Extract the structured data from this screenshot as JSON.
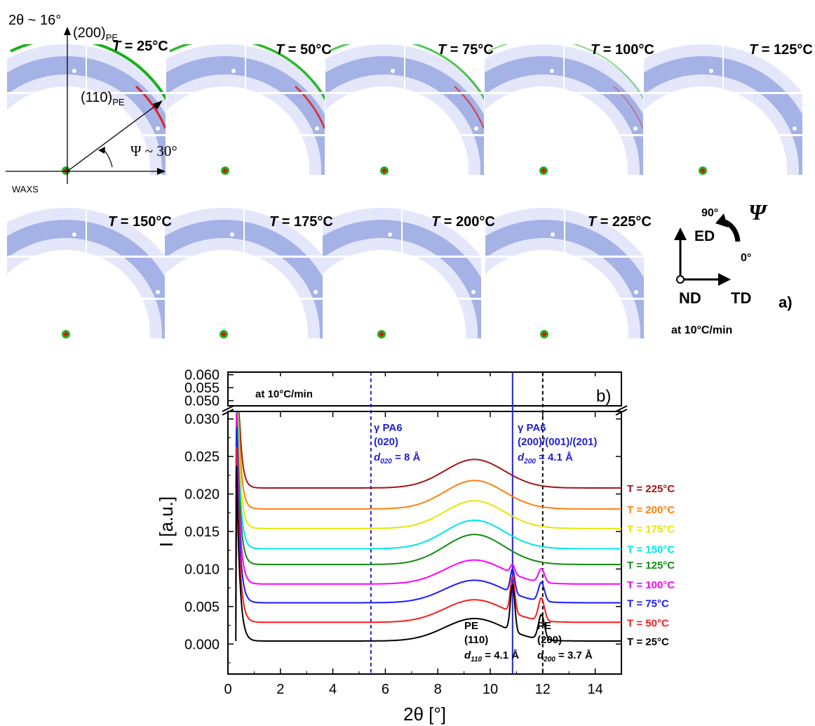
{
  "panel_a": {
    "top_left_text": "2θ ~ 16°",
    "label_200": "(200)",
    "label_110": "(110)",
    "sub_pe": "PE",
    "psi_angle": "Ψ ~ 30°",
    "waxs": "WAXS",
    "temps": [
      {
        "var": "T",
        "value": " = 25°C",
        "arc": 1.0
      },
      {
        "var": "T",
        "value": " = 50°C",
        "arc": 0.9
      },
      {
        "var": "T",
        "value": " = 75°C",
        "arc": 0.75
      },
      {
        "var": "T",
        "value": " = 100°C",
        "arc": 0.5
      },
      {
        "var": "T",
        "value": " = 125°C",
        "arc": 0.15
      },
      {
        "var": "T",
        "value": " = 150°C",
        "arc": 0.05
      },
      {
        "var": "T",
        "value": " = 175°C",
        "arc": 0.05
      },
      {
        "var": "T",
        "value": " = 200°C",
        "arc": 0.05
      },
      {
        "var": "T",
        "value": " = 225°C",
        "arc": 0.05
      }
    ],
    "axes_90": "90°",
    "axes_0": "0°",
    "axes_psi": "Ψ",
    "axes_ed": "ED",
    "axes_nd": "ND",
    "axes_td": "TD",
    "tag": "a)",
    "rate": "at 10°C/min"
  },
  "chart_data": {
    "type": "line",
    "title": "",
    "panel_tag": "b)",
    "rate_note": "at 10°C/min",
    "xlabel": "2θ [°]",
    "ylabel": "I [a.u.]",
    "xlim": [
      0,
      15
    ],
    "ylim_lower": [
      -0.004,
      0.031
    ],
    "ylim_upper": [
      0.048,
      0.061
    ],
    "x_ticks": [
      "0",
      "2",
      "4",
      "6",
      "8",
      "10",
      "12",
      "14"
    ],
    "y_ticks_lower": [
      "0.000",
      "0.005",
      "0.010",
      "0.015",
      "0.020",
      "0.025",
      "0.030"
    ],
    "y_ticks_upper": [
      "0.050",
      "0.055",
      "0.060"
    ],
    "vlines": [
      {
        "x": 5.45,
        "color": "#1f1fd6"
      },
      {
        "x": 10.85,
        "color": "#1f1fd6"
      },
      {
        "x": 12.0,
        "color": "#000000"
      }
    ],
    "series": [
      {
        "name": "T = 225°C",
        "color": "#a31515",
        "baseline": 0.0208,
        "hump": 0.0038,
        "peak110": 0.0,
        "peak200": 0.0
      },
      {
        "name": "T = 200°C",
        "color": "#ff7f0e",
        "baseline": 0.018,
        "hump": 0.0038,
        "peak110": 0.0,
        "peak200": 0.0
      },
      {
        "name": "T = 175°C",
        "color": "#e6e600",
        "baseline": 0.0154,
        "hump": 0.0037,
        "peak110": 0.0,
        "peak200": 0.0
      },
      {
        "name": "T = 150°C",
        "color": "#00e5ee",
        "baseline": 0.0127,
        "hump": 0.0038,
        "peak110": 0.0,
        "peak200": 0.0
      },
      {
        "name": "T = 125°C",
        "color": "#138a13",
        "baseline": 0.0106,
        "hump": 0.004,
        "peak110": 0.0,
        "peak200": 0.0
      },
      {
        "name": "T = 100°C",
        "color": "#ff00ff",
        "baseline": 0.008,
        "hump": 0.0032,
        "peak110": 0.0012,
        "peak200": 0.0018
      },
      {
        "name": "T = 75°C",
        "color": "#1a1aff",
        "baseline": 0.0055,
        "hump": 0.003,
        "peak110": 0.0032,
        "peak200": 0.0025
      },
      {
        "name": "T = 50°C",
        "color": "#ff1a1a",
        "baseline": 0.0029,
        "hump": 0.003,
        "peak110": 0.0048,
        "peak200": 0.003
      },
      {
        "name": "T = 25°C",
        "color": "#000000",
        "baseline": 0.0004,
        "hump": 0.003,
        "peak110": 0.0062,
        "peak200": 0.0033
      }
    ],
    "annotations": {
      "pa6_020": [
        "γ PA6",
        "(020)",
        "d",
        "020",
        " = 8 Å"
      ],
      "pa6_200": [
        "γ PA6",
        "(200)/(001)/(201)",
        "d",
        "200",
        " = 4.1 Å"
      ],
      "pe_110": [
        "PE",
        "(110)",
        "d",
        "110",
        " = 4.1 Å"
      ],
      "pe_200": [
        "PE",
        "(200)",
        "d",
        "200",
        " = 3.7 Å"
      ]
    }
  }
}
